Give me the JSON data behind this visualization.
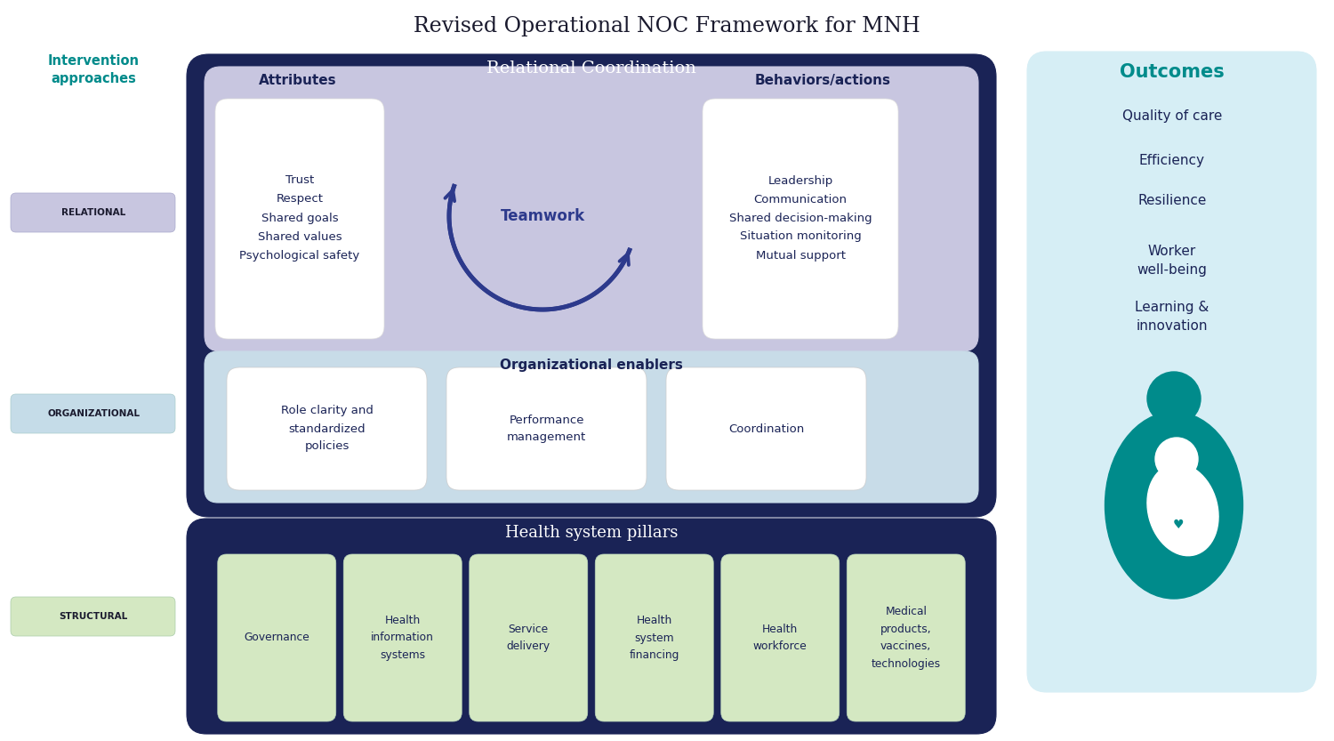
{
  "title": "Revised Operational NOC Framework for MNH",
  "title_fontsize": 17,
  "title_color": "#1a1a2e",
  "bg_color": "#ffffff",
  "left_label_title": "Intervention\napproaches",
  "left_label_title_color": "#008b8b",
  "left_labels": [
    "RELATIONAL",
    "ORGANIZATIONAL",
    "STRUCTURAL"
  ],
  "left_label_bg": [
    "#c8c6e0",
    "#c5dce8",
    "#d4e8c2"
  ],
  "relational_bg": "#1a2356",
  "relational_title": "Relational Coordination",
  "relational_title_color": "#ffffff",
  "relational_inner_bg": "#c8c6e0",
  "attributes_title": "Attributes",
  "attributes_title_color": "#1a2356",
  "attributes_items": [
    "Trust",
    "Respect",
    "Shared goals",
    "Shared values",
    "Psychological safety"
  ],
  "attributes_box_bg": "#ffffff",
  "teamwork_label": "Teamwork",
  "teamwork_arrow_color": "#2d3a8c",
  "behaviors_title": "Behaviors/actions",
  "behaviors_title_color": "#1a2356",
  "behaviors_items": [
    "Leadership",
    "Communication",
    "Shared decision-making",
    "Situation monitoring",
    "Mutual support"
  ],
  "behaviors_box_bg": "#ffffff",
  "org_bg": "#c8dce8",
  "org_title": "Organizational enablers",
  "org_title_color": "#1a2356",
  "org_boxes": [
    "Role clarity and\nstandardized\npolicies",
    "Performance\nmanagement",
    "Coordination"
  ],
  "org_box_bg": "#ffffff",
  "structural_bg": "#1a2356",
  "structural_title": "Health system pillars",
  "structural_title_color": "#ffffff",
  "structural_boxes": [
    "Governance",
    "Health\ninformation\nsystems",
    "Service\ndelivery",
    "Health\nsystem\nfinancing",
    "Health\nworkforce",
    "Medical\nproducts,\nvaccines,\ntechnologies"
  ],
  "structural_box_bg": "#d4e8c2",
  "outcomes_bg": "#d6eef5",
  "outcomes_title": "Outcomes",
  "outcomes_title_color": "#008b8b",
  "outcomes_items": [
    "Quality of care",
    "Efficiency",
    "Resilience",
    "Worker\nwell-being",
    "Learning &\ninnovation"
  ],
  "outcomes_text_color": "#1a2356",
  "icon_color": "#008b8b"
}
